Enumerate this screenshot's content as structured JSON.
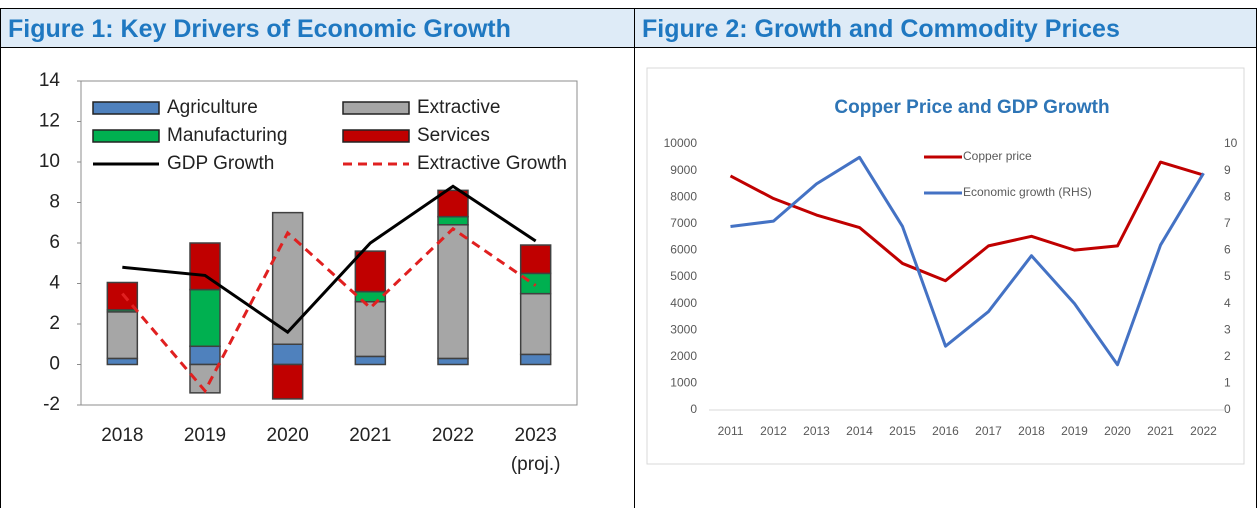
{
  "panels": [
    {
      "heading": "Figure 1: Key Drivers of Economic Growth"
    },
    {
      "heading": "Figure 2: Growth and Commodity Prices"
    }
  ],
  "chart_data": [
    {
      "type": "bar",
      "stacked": true,
      "legend": "top-left",
      "categories": [
        "2018",
        "2019",
        "2020",
        "2021",
        "2022",
        "2023\n(proj.)"
      ],
      "ylim": [
        -2,
        14
      ],
      "yticks": [
        -2,
        0,
        2,
        4,
        6,
        8,
        10,
        12,
        14
      ],
      "series": [
        {
          "name": "Agriculture",
          "color": "#4f81bd",
          "values": [
            0.3,
            0.9,
            1.0,
            0.4,
            0.3,
            0.5
          ]
        },
        {
          "name": "Extractive",
          "color": "#a6a6a6",
          "values": [
            2.3,
            -1.4,
            6.5,
            2.7,
            6.6,
            3.0
          ]
        },
        {
          "name": "Manufacturing",
          "color": "#00b050",
          "values": [
            0.1,
            2.8,
            0,
            0.5,
            0.4,
            1.0
          ]
        },
        {
          "name": "Services",
          "color": "#c00000",
          "values": [
            1.35,
            2.3,
            -1.7,
            2.0,
            1.3,
            1.4
          ]
        },
        {
          "name": "GDP Growth",
          "type": "line",
          "color": "#000000",
          "values": [
            4.8,
            4.4,
            1.6,
            6.0,
            8.8,
            6.1
          ]
        },
        {
          "name": "Extractive Growth",
          "type": "line",
          "dashed": true,
          "color": "#e02020",
          "values": [
            3.5,
            -1.3,
            6.5,
            2.8,
            6.7,
            3.9
          ]
        }
      ]
    },
    {
      "type": "line",
      "title": "Copper Price and GDP Growth",
      "legend": "top-center",
      "categories": [
        "2011",
        "2012",
        "2013",
        "2014",
        "2015",
        "2016",
        "2017",
        "2018",
        "2019",
        "2020",
        "2021",
        "2022"
      ],
      "ylim": [
        0,
        10000
      ],
      "yticks": [
        0,
        1000,
        2000,
        3000,
        4000,
        5000,
        6000,
        7000,
        8000,
        9000,
        10000
      ],
      "y2lim": [
        0,
        10
      ],
      "y2ticks": [
        0,
        1,
        2,
        3,
        4,
        5,
        6,
        7,
        8,
        9,
        10
      ],
      "series": [
        {
          "name": "Copper price",
          "color": "#c00000",
          "values": [
            8800,
            7950,
            7330,
            6860,
            5510,
            4860,
            6170,
            6530,
            6010,
            6170,
            9320,
            8830
          ]
        },
        {
          "name": "Economic growth (RHS)",
          "axis": "y2",
          "color": "#4472c4",
          "values": [
            6.9,
            7.1,
            8.5,
            9.5,
            6.9,
            2.4,
            3.7,
            5.8,
            4.0,
            1.7,
            6.2,
            8.9
          ]
        }
      ]
    }
  ]
}
